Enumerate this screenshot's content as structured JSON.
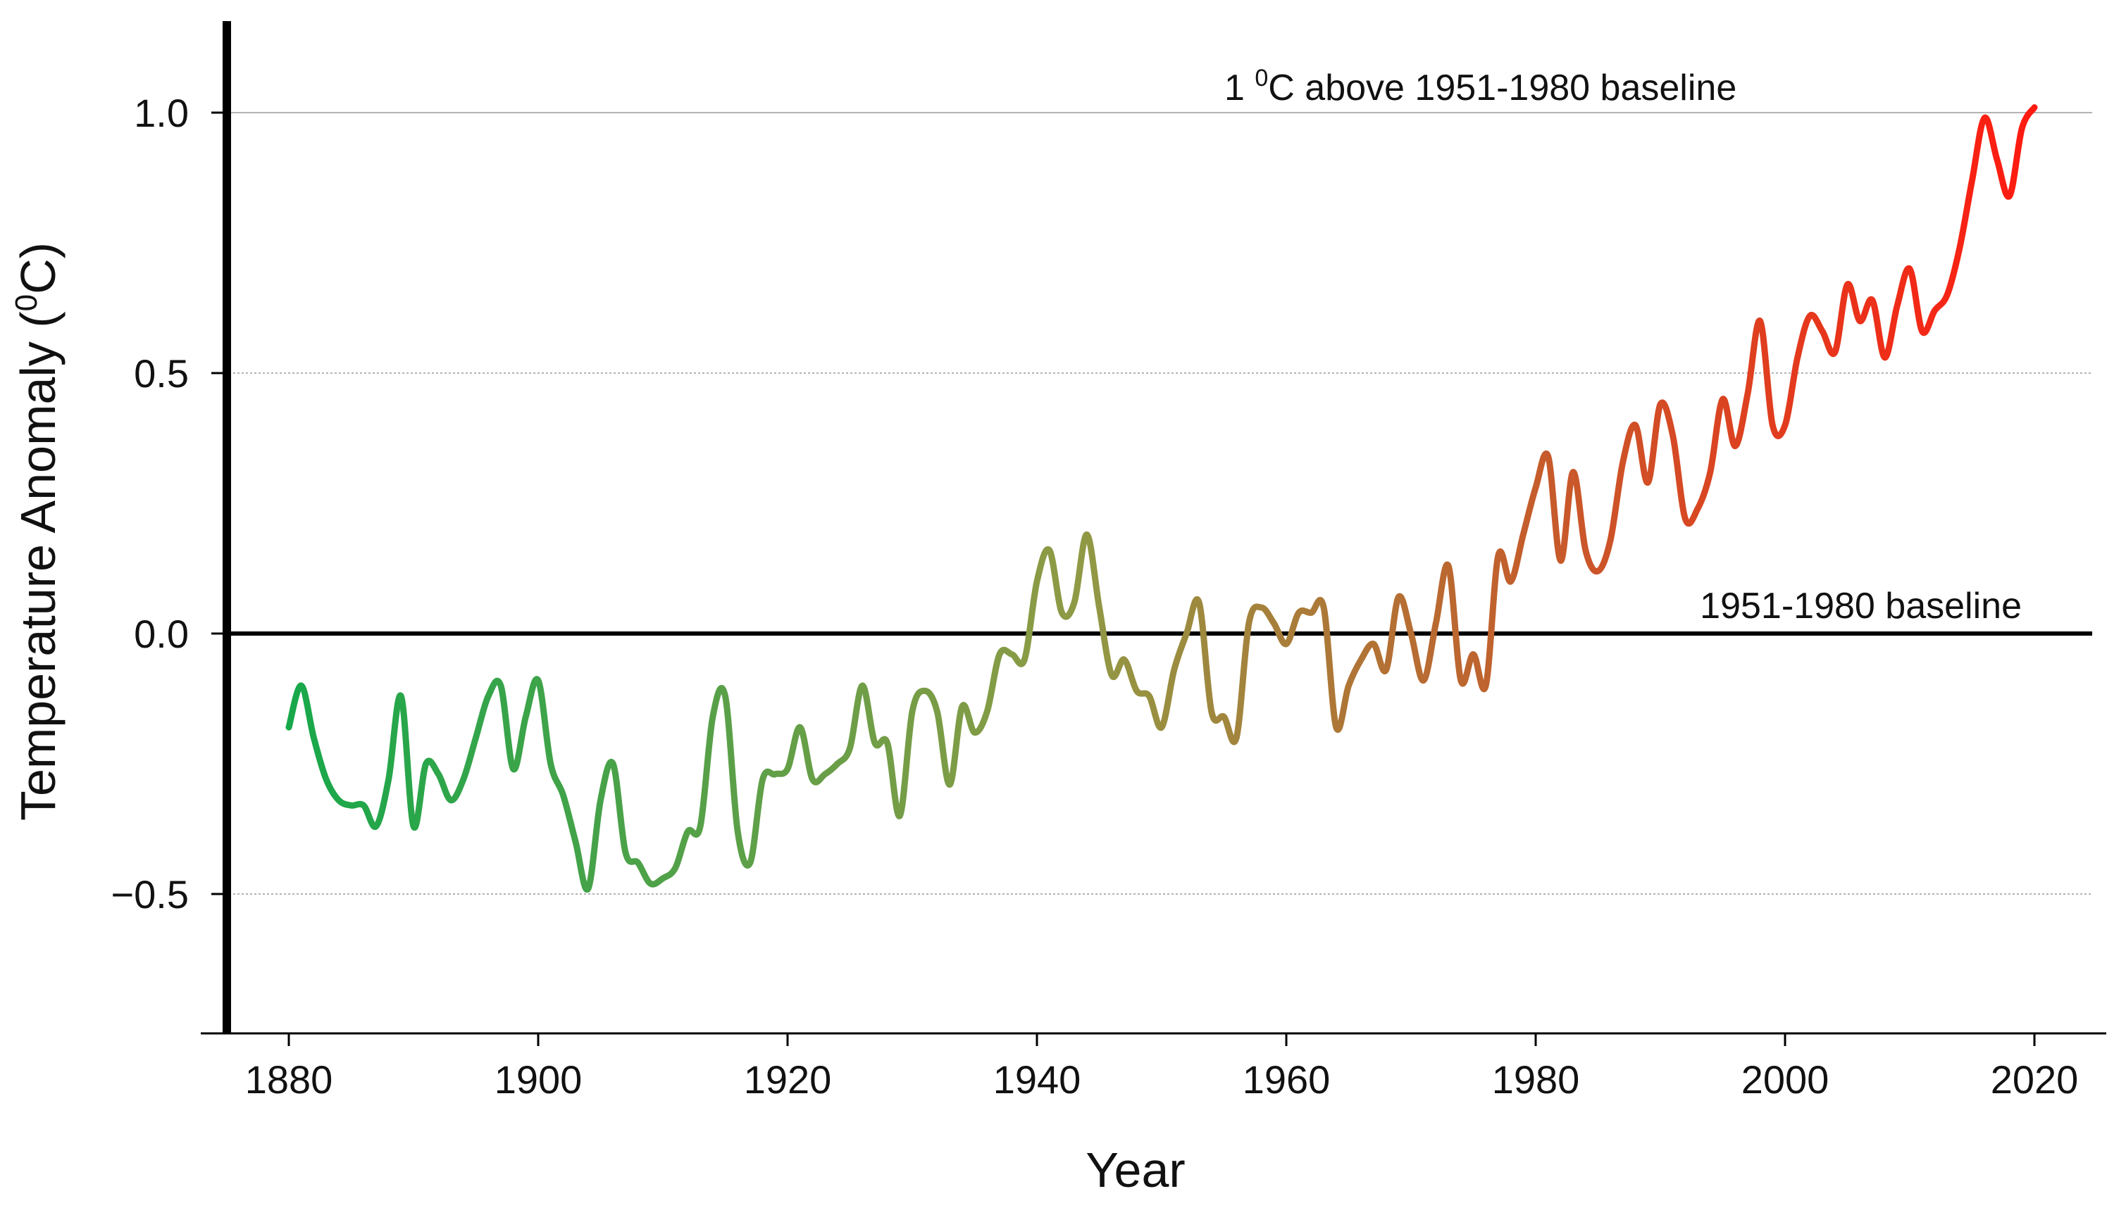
{
  "chart_data": {
    "type": "line",
    "title": "",
    "xlabel": "Year",
    "ylabel": "Temperature Anomaly (0C)",
    "ylabel_parts": {
      "pre": "Temperature Anomaly (",
      "sup": "0",
      "post": "C)"
    },
    "xlim": [
      1875,
      2025
    ],
    "ylim": [
      -0.75,
      1.2
    ],
    "x_ticks": [
      1880,
      1900,
      1920,
      1940,
      1960,
      1980,
      2000,
      2020
    ],
    "x_tick_labels": [
      "1880",
      "1900",
      "1920",
      "1940",
      "1960",
      "1980",
      "2000",
      "2020"
    ],
    "y_ticks": [
      -0.5,
      0.5,
      1.0
    ],
    "y_tick_labels": [
      "−0.5",
      "0.5",
      "1.0"
    ],
    "zero_tick_label": "0.0",
    "gridlines": [
      -0.5,
      0.5,
      1.0
    ],
    "baseline_value": 0.0,
    "annotations": {
      "baseline_label": "1951-1980 baseline",
      "one_degree_label": {
        "pre": "1 ",
        "sup": "0",
        "post": "C above 1951-1980 baseline"
      }
    },
    "colors": {
      "start": "#17a84b",
      "mid": "#8f9a45",
      "end": "#ff1a10",
      "axis": "#000000",
      "grid": "#9a9a9a"
    },
    "series": [
      {
        "name": "Temperature Anomaly",
        "x": [
          1880,
          1881,
          1882,
          1883,
          1884,
          1885,
          1886,
          1887,
          1888,
          1889,
          1890,
          1891,
          1892,
          1893,
          1894,
          1895,
          1896,
          1897,
          1898,
          1899,
          1900,
          1901,
          1902,
          1903,
          1904,
          1905,
          1906,
          1907,
          1908,
          1909,
          1910,
          1911,
          1912,
          1913,
          1914,
          1915,
          1916,
          1917,
          1918,
          1919,
          1920,
          1921,
          1922,
          1923,
          1924,
          1925,
          1926,
          1927,
          1928,
          1929,
          1930,
          1931,
          1932,
          1933,
          1934,
          1935,
          1936,
          1937,
          1938,
          1939,
          1940,
          1941,
          1942,
          1943,
          1944,
          1945,
          1946,
          1947,
          1948,
          1949,
          1950,
          1951,
          1952,
          1953,
          1954,
          1955,
          1956,
          1957,
          1958,
          1959,
          1960,
          1961,
          1962,
          1963,
          1964,
          1965,
          1966,
          1967,
          1968,
          1969,
          1970,
          1971,
          1972,
          1973,
          1974,
          1975,
          1976,
          1977,
          1978,
          1979,
          1980,
          1981,
          1982,
          1983,
          1984,
          1985,
          1986,
          1987,
          1988,
          1989,
          1990,
          1991,
          1992,
          1993,
          1994,
          1995,
          1996,
          1997,
          1998,
          1999,
          2000,
          2001,
          2002,
          2003,
          2004,
          2005,
          2006,
          2007,
          2008,
          2009,
          2010,
          2011,
          2012,
          2013,
          2014,
          2015,
          2016,
          2017,
          2018,
          2019,
          2020
        ],
        "y": [
          -0.18,
          -0.1,
          -0.2,
          -0.28,
          -0.32,
          -0.33,
          -0.33,
          -0.37,
          -0.28,
          -0.12,
          -0.37,
          -0.25,
          -0.27,
          -0.32,
          -0.28,
          -0.2,
          -0.12,
          -0.1,
          -0.26,
          -0.16,
          -0.09,
          -0.25,
          -0.31,
          -0.4,
          -0.49,
          -0.32,
          -0.25,
          -0.42,
          -0.44,
          -0.48,
          -0.47,
          -0.45,
          -0.38,
          -0.37,
          -0.16,
          -0.12,
          -0.38,
          -0.44,
          -0.28,
          -0.27,
          -0.26,
          -0.18,
          -0.28,
          -0.27,
          -0.25,
          -0.22,
          -0.1,
          -0.21,
          -0.21,
          -0.35,
          -0.15,
          -0.11,
          -0.15,
          -0.29,
          -0.14,
          -0.19,
          -0.15,
          -0.04,
          -0.04,
          -0.05,
          0.1,
          0.16,
          0.04,
          0.06,
          0.19,
          0.05,
          -0.08,
          -0.05,
          -0.11,
          -0.12,
          -0.18,
          -0.07,
          0.0,
          0.06,
          -0.15,
          -0.16,
          -0.2,
          0.02,
          0.05,
          0.02,
          -0.02,
          0.04,
          0.04,
          0.05,
          -0.18,
          -0.1,
          -0.05,
          -0.02,
          -0.07,
          0.07,
          0.0,
          -0.09,
          0.02,
          0.13,
          -0.09,
          -0.04,
          -0.1,
          0.15,
          0.1,
          0.19,
          0.28,
          0.34,
          0.14,
          0.31,
          0.16,
          0.12,
          0.18,
          0.33,
          0.4,
          0.29,
          0.44,
          0.38,
          0.22,
          0.24,
          0.31,
          0.45,
          0.36,
          0.46,
          0.6,
          0.4,
          0.4,
          0.53,
          0.61,
          0.58,
          0.54,
          0.67,
          0.6,
          0.64,
          0.53,
          0.63,
          0.7,
          0.58,
          0.62,
          0.65,
          0.74,
          0.87,
          0.99,
          0.91,
          0.84,
          0.97,
          1.01
        ]
      }
    ]
  }
}
